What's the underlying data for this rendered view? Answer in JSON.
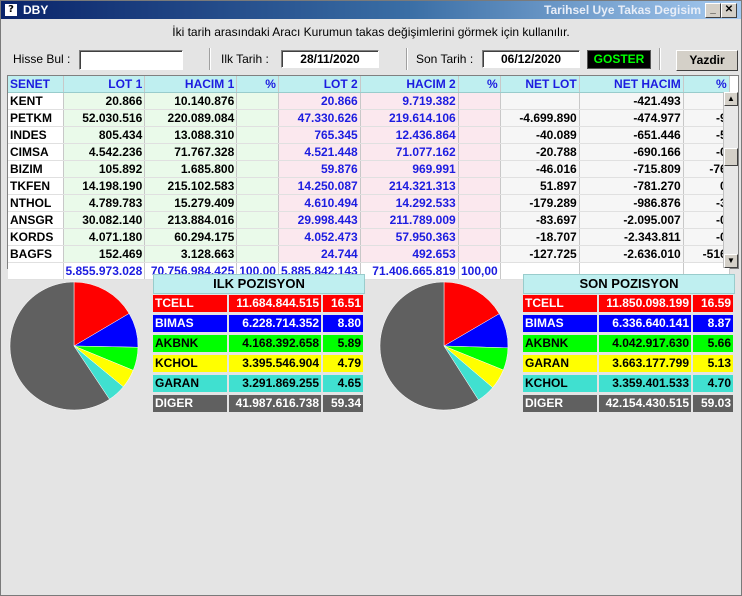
{
  "window": {
    "title_left": "DBY",
    "title_right": "Tarihsel Uye Takas Degisim"
  },
  "hint": "İki tarih arasındaki  Aracı Kurumun takas değişimlerini görmek için kullanılır.",
  "form": {
    "hisse_label": "Hisse Bul :",
    "hisse_value": "",
    "ilk_label": "Ilk Tarih :",
    "ilk_value": "28/11/2020",
    "son_label": "Son Tarih :",
    "son_value": "06/12/2020",
    "goster_label": "GOSTER",
    "yazdir_label": "Yazdir"
  },
  "grid": {
    "headers": [
      "SENET",
      "LOT 1",
      "HACIM 1",
      "%",
      "LOT 2",
      "HACIM 2",
      "%",
      "NET LOT",
      "NET HACIM",
      "%"
    ],
    "rows": [
      [
        "KENT",
        "20.866",
        "10.140.876",
        "",
        "20.866",
        "9.719.382",
        "",
        "",
        "-421.493",
        "-"
      ],
      [
        "PETKM",
        "52.030.516",
        "220.089.084",
        "",
        "47.330.626",
        "219.614.106",
        "",
        "-4.699.890",
        "-474.977",
        "-9"
      ],
      [
        "INDES",
        "805.434",
        "13.088.310",
        "",
        "765.345",
        "12.436.864",
        "",
        "-40.089",
        "-651.446",
        "-5"
      ],
      [
        "CIMSA",
        "4.542.236",
        "71.767.328",
        "",
        "4.521.448",
        "71.077.162",
        "",
        "-20.788",
        "-690.166",
        "-0"
      ],
      [
        "BIZIM",
        "105.892",
        "1.685.800",
        "",
        "59.876",
        "969.991",
        "",
        "-46.016",
        "-715.809",
        "-76"
      ],
      [
        "TKFEN",
        "14.198.190",
        "215.102.583",
        "",
        "14.250.087",
        "214.321.313",
        "",
        "51.897",
        "-781.270",
        "0"
      ],
      [
        "NTHOL",
        "4.789.783",
        "15.279.409",
        "",
        "4.610.494",
        "14.292.533",
        "",
        "-179.289",
        "-986.876",
        "-3"
      ],
      [
        "ANSGR",
        "30.082.140",
        "213.884.016",
        "",
        "29.998.443",
        "211.789.009",
        "",
        "-83.697",
        "-2.095.007",
        "-0"
      ],
      [
        "KORDS",
        "4.071.180",
        "60.294.175",
        "",
        "4.052.473",
        "57.950.363",
        "",
        "-18.707",
        "-2.343.811",
        "-0"
      ],
      [
        "BAGFS",
        "152.469",
        "3.128.663",
        "",
        "24.744",
        "492.653",
        "",
        "-127.725",
        "-2.636.010",
        "-516"
      ]
    ],
    "totals": [
      "",
      "5.855.973.028",
      "70.756.984.425",
      "100,00",
      "5.885.842.143",
      "71.406.665.819",
      "100,00",
      "",
      "",
      ""
    ]
  },
  "ilk_pozisyon": {
    "title": "ILK POZISYON",
    "rows": [
      {
        "name": "TCELL",
        "value": "11.684.844.515",
        "pct": "16.51",
        "share": 16.51,
        "color": "#ff0000",
        "text": "#ffffff"
      },
      {
        "name": "BIMAS",
        "value": "6.228.714.352",
        "pct": "8.80",
        "share": 8.8,
        "color": "#0000ff",
        "text": "#ffffff"
      },
      {
        "name": "AKBNK",
        "value": "4.168.392.658",
        "pct": "5.89",
        "share": 5.89,
        "color": "#00ff00",
        "text": "#000000"
      },
      {
        "name": "KCHOL",
        "value": "3.395.546.904",
        "pct": "4.79",
        "share": 4.79,
        "color": "#ffff00",
        "text": "#000000"
      },
      {
        "name": "GARAN",
        "value": "3.291.869.255",
        "pct": "4.65",
        "share": 4.65,
        "color": "#40e0d0",
        "text": "#000000"
      },
      {
        "name": "DIGER",
        "value": "41.987.616.738",
        "pct": "59.34",
        "share": 59.34,
        "color": "#606060",
        "text": "#ffffff"
      }
    ]
  },
  "son_pozisyon": {
    "title": "SON POZISYON",
    "rows": [
      {
        "name": "TCELL",
        "value": "11.850.098.199",
        "pct": "16.59",
        "share": 16.59,
        "color": "#ff0000",
        "text": "#ffffff"
      },
      {
        "name": "BIMAS",
        "value": "6.336.640.141",
        "pct": "8.87",
        "share": 8.87,
        "color": "#0000ff",
        "text": "#ffffff"
      },
      {
        "name": "AKBNK",
        "value": "4.042.917.630",
        "pct": "5.66",
        "share": 5.66,
        "color": "#00ff00",
        "text": "#000000"
      },
      {
        "name": "GARAN",
        "value": "3.663.177.799",
        "pct": "5.13",
        "share": 5.13,
        "color": "#ffff00",
        "text": "#000000"
      },
      {
        "name": "KCHOL",
        "value": "3.359.401.533",
        "pct": "4.70",
        "share": 4.7,
        "color": "#40e0d0",
        "text": "#000000"
      },
      {
        "name": "DIGER",
        "value": "42.154.430.515",
        "pct": "59.03",
        "share": 59.03,
        "color": "#606060",
        "text": "#ffffff"
      }
    ]
  }
}
